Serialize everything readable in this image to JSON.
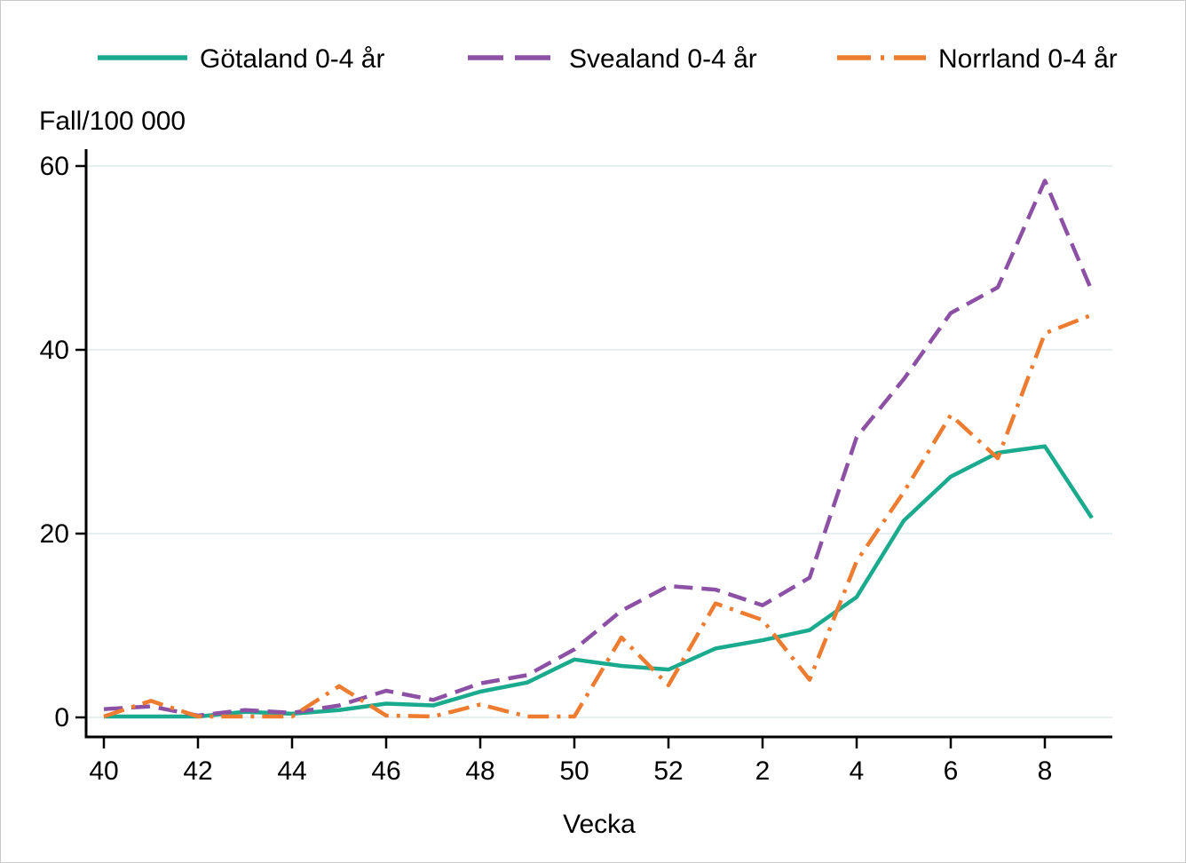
{
  "page": {
    "background": "#ffffff",
    "border_color": "#c9c9c9"
  },
  "chart_data": {
    "type": "line",
    "y_axis_caption": "Fall/100 000",
    "xlabel": "Vecka",
    "x": [
      "40",
      "41",
      "42",
      "43",
      "44",
      "45",
      "46",
      "47",
      "48",
      "49",
      "50",
      "51",
      "52",
      "1",
      "2",
      "3",
      "4",
      "5",
      "6",
      "7",
      "8",
      "9"
    ],
    "x_tick_labels": [
      "40",
      "42",
      "44",
      "46",
      "48",
      "50",
      "52",
      "2",
      "4",
      "6",
      "8"
    ],
    "x_tick_indices": [
      0,
      2,
      4,
      6,
      8,
      10,
      12,
      14,
      16,
      18,
      20
    ],
    "y_ticks": [
      0,
      20,
      40,
      60
    ],
    "ylim": [
      0,
      62
    ],
    "grid": "horizontal",
    "gridline_color": "#e8eff1",
    "axis_color": "#000000",
    "legend_position": "top",
    "series": [
      {
        "name": "Götaland 0-4 år",
        "color": "#1aaa8d",
        "style": "solid",
        "values": [
          0.1,
          0.1,
          0.1,
          0.6,
          0.4,
          0.8,
          1.5,
          1.3,
          2.8,
          3.8,
          6.3,
          5.6,
          5.2,
          7.5,
          8.4,
          9.5,
          13.1,
          21.4,
          26.2,
          28.8,
          29.5,
          21.7
        ]
      },
      {
        "name": "Svealand 0-4 år",
        "color": "#8c51a5",
        "style": "dashed",
        "values": [
          0.9,
          1.2,
          0.2,
          0.8,
          0.5,
          1.3,
          2.9,
          1.9,
          3.7,
          4.6,
          7.4,
          11.6,
          14.3,
          13.9,
          12.2,
          15.2,
          30.5,
          36.8,
          44,
          46.8,
          58.4,
          46.4
        ]
      },
      {
        "name": "Norrland 0-4 år",
        "color": "#ee7c30",
        "style": "dash-dot",
        "values": [
          0.1,
          1.8,
          0.1,
          0.1,
          0.1,
          3.4,
          0.2,
          0.1,
          1.4,
          0.1,
          0.1,
          8.7,
          3.5,
          12.4,
          10.6,
          4.1,
          17,
          24.5,
          32.9,
          28.2,
          41.8,
          43.8
        ]
      }
    ]
  }
}
